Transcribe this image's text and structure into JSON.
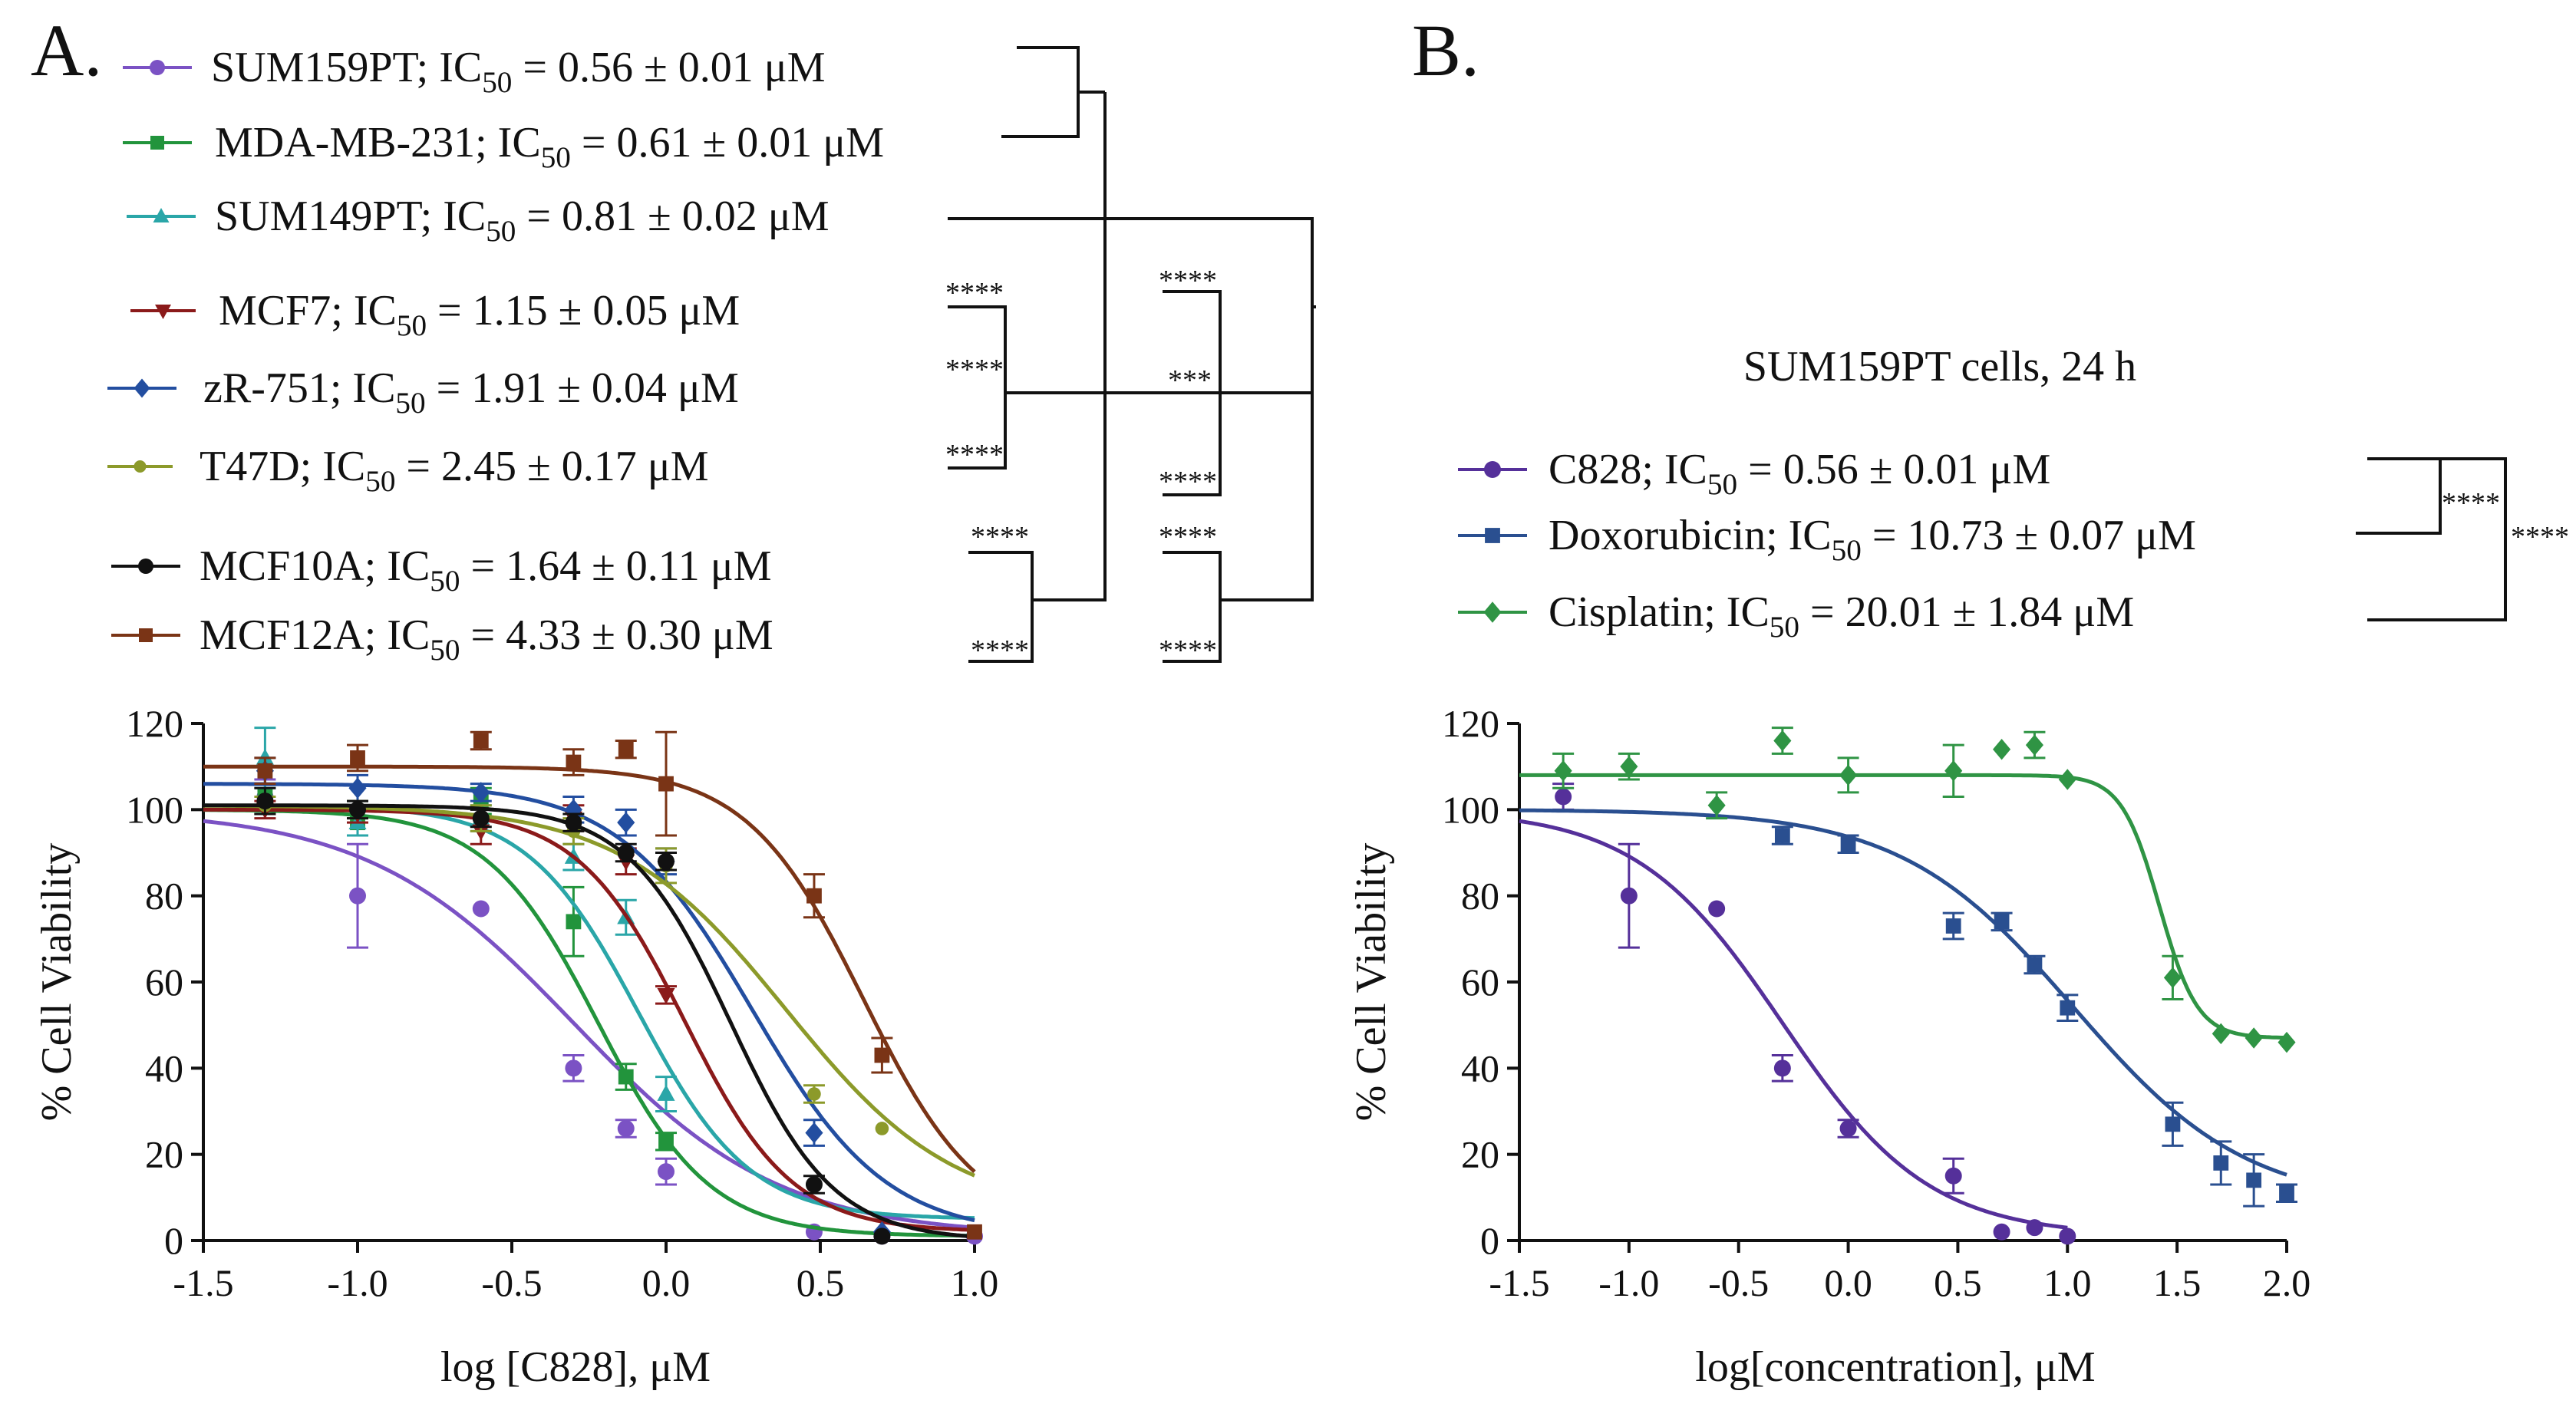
{
  "chart_data": [
    {
      "panel": "A.",
      "type": "line",
      "subtype": "dose-response",
      "title": "",
      "xlabel": "log [C828], μM",
      "ylabel": "% Cell Viability",
      "xlim": [
        -1.5,
        1.0
      ],
      "ylim": [
        0,
        120
      ],
      "xticks": [
        "-1.5",
        "-1.0",
        "-0.5",
        "0.0",
        "0.5",
        "1.0"
      ],
      "yticks": [
        "0",
        "20",
        "40",
        "60",
        "80",
        "100",
        "120"
      ],
      "series": [
        {
          "name": "SUM159PT",
          "ic50_label": "= 0.56 ± 0.01 μM",
          "color": "#7b52c4",
          "marker": "circle",
          "fit": {
            "top": 100,
            "bottom": 1,
            "logIC50": -0.3,
            "hill": 1.3
          },
          "points": [
            [
              -1.3,
              103,
              4
            ],
            [
              -1.0,
              80,
              12
            ],
            [
              -0.6,
              77,
              0
            ],
            [
              -0.3,
              40,
              3
            ],
            [
              -0.13,
              26,
              2
            ],
            [
              0.0,
              16,
              3
            ],
            [
              0.48,
              2,
              0
            ],
            [
              0.7,
              1,
              0
            ],
            [
              1.0,
              1,
              0
            ]
          ]
        },
        {
          "name": "MDA-MB-231",
          "ic50_label": "= 0.61 ± 0.01 μM",
          "color": "#22943c",
          "marker": "square",
          "fit": {
            "top": 100,
            "bottom": 1,
            "logIC50": -0.22,
            "hill": 2.4
          },
          "points": [
            [
              -1.3,
              103,
              3
            ],
            [
              -1.0,
              97,
              3
            ],
            [
              -0.6,
              102,
              3
            ],
            [
              -0.3,
              74,
              8
            ],
            [
              -0.13,
              38,
              3
            ],
            [
              0.0,
              23,
              2
            ]
          ]
        },
        {
          "name": "SUM149PT",
          "ic50_label": "= 0.81 ± 0.02 μM",
          "color": "#2aa6a8",
          "marker": "triangle",
          "fit": {
            "top": 101,
            "bottom": 5,
            "logIC50": -0.09,
            "hill": 2.4
          },
          "points": [
            [
              -1.3,
              112,
              7
            ],
            [
              -1.0,
              97,
              3
            ],
            [
              -0.6,
              98,
              3
            ],
            [
              -0.3,
              89,
              3
            ],
            [
              -0.13,
              75,
              4
            ],
            [
              0.0,
              34,
              4
            ]
          ]
        },
        {
          "name": "MCF7",
          "ic50_label": "= 1.15 ± 0.05 μM",
          "color": "#8b1a1a",
          "marker": "triangle-down",
          "fit": {
            "top": 100,
            "bottom": 2,
            "logIC50": 0.06,
            "hill": 2.5
          },
          "points": [
            [
              -1.3,
              100,
              2
            ],
            [
              -1.0,
              99,
              2
            ],
            [
              -0.6,
              95,
              3
            ],
            [
              -0.3,
              98,
              3
            ],
            [
              -0.13,
              88,
              3
            ],
            [
              0.0,
              57,
              2
            ]
          ]
        },
        {
          "name": "zR-751",
          "ic50_label": "= 1.91 ± 0.04 μM",
          "color": "#234ea0",
          "marker": "diamond",
          "fit": {
            "top": 106,
            "bottom": 1,
            "logIC50": 0.28,
            "hill": 2.0
          },
          "points": [
            [
              -1.3,
              109,
              3
            ],
            [
              -1.0,
              105,
              3
            ],
            [
              -0.6,
              104,
              2
            ],
            [
              -0.3,
              100,
              3
            ],
            [
              -0.13,
              97,
              3
            ],
            [
              0.0,
              88,
              3
            ],
            [
              0.48,
              25,
              3
            ],
            [
              0.7,
              2,
              0
            ]
          ]
        },
        {
          "name": "T47D",
          "ic50_label": "= 2.45 ± 0.17 μM",
          "color": "#8c9a2a",
          "marker": "circle-small",
          "fit": {
            "top": 101,
            "bottom": 6,
            "logIC50": 0.39,
            "hill": 1.6
          },
          "points": [
            [
              -1.3,
              101,
              2
            ],
            [
              -1.0,
              100,
              2
            ],
            [
              -0.6,
              98,
              3
            ],
            [
              -0.3,
              95,
              3
            ],
            [
              0.0,
              87,
              4
            ],
            [
              0.48,
              34,
              2
            ],
            [
              0.7,
              26,
              0
            ]
          ]
        },
        {
          "name": "MCF10A",
          "ic50_label": "= 1.64 ± 0.11 μM",
          "color": "#111111",
          "marker": "circle",
          "fit": {
            "top": 101,
            "bottom": 0,
            "logIC50": 0.21,
            "hill": 2.6
          },
          "points": [
            [
              -1.3,
              102,
              3
            ],
            [
              -1.0,
              100,
              2
            ],
            [
              -0.6,
              98,
              2
            ],
            [
              -0.3,
              97,
              2
            ],
            [
              -0.13,
              90,
              2
            ],
            [
              0.0,
              88,
              2
            ],
            [
              0.48,
              13,
              2
            ],
            [
              0.7,
              1,
              0
            ]
          ]
        },
        {
          "name": "MCF12A",
          "ic50_label": "= 4.33 ± 0.30 μM",
          "color": "#7a3416",
          "marker": "square",
          "fit": {
            "top": 110,
            "bottom": 2,
            "logIC50": 0.64,
            "hill": 2.3
          },
          "points": [
            [
              -1.3,
              109,
              3
            ],
            [
              -1.0,
              112,
              3
            ],
            [
              -0.6,
              116,
              2
            ],
            [
              -0.3,
              111,
              3
            ],
            [
              -0.13,
              114,
              2
            ],
            [
              0.0,
              106,
              12
            ],
            [
              0.48,
              80,
              5
            ],
            [
              0.7,
              43,
              4
            ],
            [
              1.0,
              2,
              0
            ]
          ]
        }
      ],
      "significance": [
        "****",
        "****",
        "****",
        "****",
        "****",
        "****",
        "***",
        "****",
        "****",
        "****"
      ]
    },
    {
      "panel": "B.",
      "type": "line",
      "subtype": "dose-response",
      "title": "SUM159PT cells, 24 h",
      "xlabel": "log[concentration], μM",
      "ylabel": "% Cell Viability",
      "xlim": [
        -1.5,
        2.0
      ],
      "ylim": [
        0,
        120
      ],
      "xticks": [
        "-1.5",
        "-1.0",
        "-0.5",
        "0.0",
        "0.5",
        "1.0",
        "1.5",
        "2.0"
      ],
      "yticks": [
        "0",
        "20",
        "40",
        "60",
        "80",
        "100",
        "120"
      ],
      "series": [
        {
          "name": "C828",
          "ic50_label": "=  0.56 ± 0.01 μM",
          "color": "#55309a",
          "marker": "circle",
          "fit": {
            "top": 100,
            "bottom": 1,
            "logIC50": -0.3,
            "hill": 1.3
          },
          "points": [
            [
              -1.3,
              103,
              3
            ],
            [
              -1.0,
              80,
              12
            ],
            [
              -0.6,
              77,
              0
            ],
            [
              -0.3,
              40,
              3
            ],
            [
              0.0,
              26,
              2
            ],
            [
              0.48,
              15,
              4
            ],
            [
              0.7,
              2,
              0
            ],
            [
              0.85,
              3,
              0
            ],
            [
              1.0,
              1,
              0
            ]
          ]
        },
        {
          "name": "Doxorubicin",
          "ic50_label": "= 10.73 ± 0.07   μM",
          "color": "#2a4f90",
          "marker": "square",
          "fit": {
            "top": 100,
            "bottom": 8,
            "logIC50": 1.03,
            "hill": 1.1
          },
          "points": [
            [
              -0.3,
              94,
              2
            ],
            [
              0.0,
              92,
              2
            ],
            [
              0.48,
              73,
              3
            ],
            [
              0.7,
              74,
              2
            ],
            [
              0.85,
              64,
              2
            ],
            [
              1.0,
              54,
              3
            ],
            [
              1.48,
              27,
              5
            ],
            [
              1.7,
              18,
              5
            ],
            [
              1.85,
              14,
              6
            ],
            [
              2.0,
              11,
              2
            ]
          ]
        },
        {
          "name": "Cisplatin",
          "ic50_label": "= 20.01 ± 1.84  μM",
          "color": "#2f9444",
          "marker": "diamond",
          "fit": {
            "top": 108,
            "bottom": 47,
            "logIC50": 1.42,
            "hill": 5.0
          },
          "points": [
            [
              -1.3,
              109,
              4
            ],
            [
              -1.0,
              110,
              3
            ],
            [
              -0.6,
              101,
              3
            ],
            [
              -0.3,
              116,
              3
            ],
            [
              0.0,
              108,
              4
            ],
            [
              0.48,
              109,
              6
            ],
            [
              0.7,
              114,
              0
            ],
            [
              0.85,
              115,
              3
            ],
            [
              1.0,
              107,
              0
            ],
            [
              1.48,
              61,
              5
            ],
            [
              1.7,
              48,
              0
            ],
            [
              1.85,
              47,
              0
            ],
            [
              2.0,
              46,
              0
            ]
          ]
        }
      ],
      "significance": [
        "****",
        "****"
      ]
    }
  ]
}
